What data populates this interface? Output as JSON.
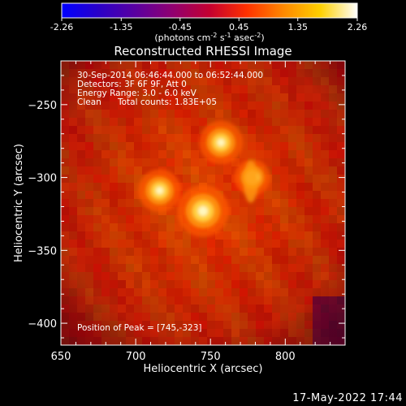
{
  "colorbar": {
    "ticks": [
      "-2.26",
      "-1.35",
      "-0.45",
      "0.45",
      "1.35",
      "2.26"
    ],
    "unit_label": "(photons cm",
    "unit_sup1": "-2",
    "unit_mid": " s",
    "unit_sup2": "-1",
    "unit_mid2": " asec",
    "unit_sup3": "-2",
    "unit_end": ")",
    "range": [
      -2.26,
      2.26
    ]
  },
  "info": {
    "line1": "30-Sep-2014 06:46:44.000 to 06:52:44.000",
    "line2": "Detectors: 3F 6F 9F, Att 0",
    "line3": "Energy Range: 3.0 - 6.0 keV",
    "line4_clean": "Clean",
    "line4_counts": "Total counts: 1.83E+05",
    "peak": "Position of Peak = [745,-323]"
  },
  "footer": {
    "date": "17-May-2022 17:44"
  },
  "chart_data": {
    "type": "heatmap",
    "title": "Reconstructed RHESSI Image",
    "xlabel": "Heliocentric X (arcsec)",
    "ylabel": "Heliocentric Y (arcsec)",
    "xlim": [
      650,
      840
    ],
    "ylim": [
      -415,
      -220
    ],
    "xticks": [
      650,
      700,
      750,
      800
    ],
    "yticks": [
      -250,
      -300,
      -350,
      -400
    ],
    "sources": [
      {
        "x": 745,
        "y": -323,
        "peak": 1.0
      },
      {
        "x": 716,
        "y": -309,
        "peak": 0.78
      },
      {
        "x": 757,
        "y": -276,
        "peak": 0.8
      },
      {
        "x": 778,
        "y": -300,
        "peak": 0.62
      }
    ],
    "colormap": [
      "#0000ff",
      "#2a00c8",
      "#5a00a0",
      "#900070",
      "#c40030",
      "#ff3000",
      "#ff8800",
      "#ffd000",
      "#ffffff"
    ]
  }
}
